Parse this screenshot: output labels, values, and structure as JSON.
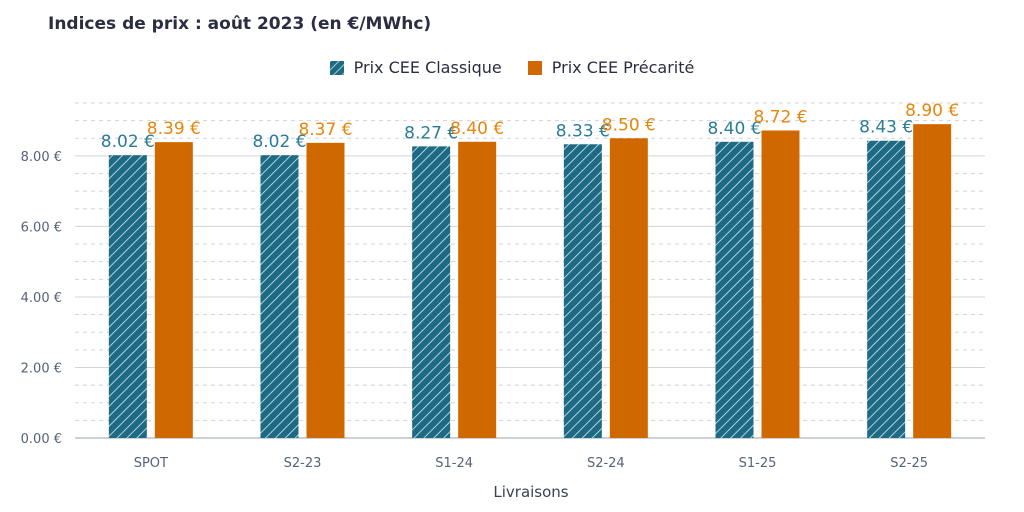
{
  "title": "Indices de prix : août 2023 (en €/MWhc)",
  "colors": {
    "classique": "#1d6a85",
    "precarite": "#d06800",
    "classique_label": "#2a7c98",
    "precarite_label": "#e8860c",
    "axis_text": "#55627a",
    "grid": "#d0d4dc"
  },
  "chart_data": {
    "type": "bar",
    "title": "Indices de prix : août 2023 (en €/MWhc)",
    "xlabel": "Livraisons",
    "ylabel": "",
    "categories": [
      "SPOT",
      "S2-23",
      "S1-24",
      "S2-24",
      "S1-25",
      "S2-25"
    ],
    "series": [
      {
        "name": "Prix CEE Classique",
        "values": [
          8.02,
          8.02,
          8.27,
          8.33,
          8.4,
          8.43
        ],
        "labels": [
          "8.02 €",
          "8.02 €",
          "8.27 €",
          "8.33 €",
          "8.40 €",
          "8.43 €"
        ],
        "pattern": "hatched"
      },
      {
        "name": "Prix CEE Précarité",
        "values": [
          8.39,
          8.37,
          8.4,
          8.5,
          8.72,
          8.9
        ],
        "labels": [
          "8.39 €",
          "8.37 €",
          "8.40 €",
          "8.50 €",
          "8.72 €",
          "8.90 €"
        ],
        "pattern": "solid"
      }
    ],
    "ylim": [
      0,
      9.5
    ],
    "yticks": [
      0,
      2,
      4,
      6,
      8
    ],
    "ytick_labels": [
      "0.00 €",
      "2.00 €",
      "4.00 €",
      "6.00 €",
      "8.00 €"
    ],
    "grid": true,
    "legend": "top-center"
  }
}
